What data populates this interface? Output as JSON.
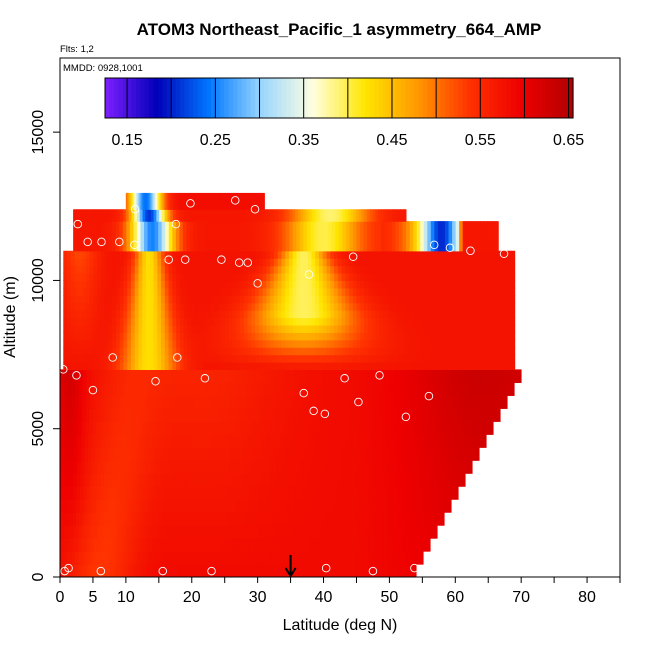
{
  "chart_data": {
    "type": "heatmap",
    "title": "ATOM3 Northeast_Pacific_1 asymmetry_664_AMP",
    "flights_note": "Flts: 1,2",
    "date_note": "MMDD: 0928,1001",
    "xlabel": "Latitude (deg N)",
    "ylabel": "Altitude (m)",
    "xlim": [
      0,
      85
    ],
    "ylim": [
      0,
      17500
    ],
    "x_ticks": [
      0,
      5,
      10,
      20,
      30,
      40,
      50,
      60,
      70,
      80
    ],
    "y_ticks": [
      0,
      5000,
      10000,
      15000
    ],
    "colorbar": {
      "min": 0.125,
      "max": 0.655,
      "ticks": [
        0.15,
        0.25,
        0.35,
        0.45,
        0.55,
        0.65
      ],
      "tick_labels": [
        "0.15",
        "0.25",
        "0.35",
        "0.45",
        "0.55",
        "0.65"
      ],
      "colors": [
        "#7f1fff",
        "#0000b8",
        "#0077ff",
        "#99d6ff",
        "#ffffe0",
        "#ffe600",
        "#ff9900",
        "#ff3300",
        "#ee0000",
        "#b20000"
      ]
    },
    "profiles_upper": [
      {
        "lat": 0.5,
        "alt": 7000
      },
      {
        "lat": 2.7,
        "alt": 11900
      },
      {
        "lat": 4.2,
        "alt": 11300
      },
      {
        "lat": 6.3,
        "alt": 11300
      },
      {
        "lat": 9.0,
        "alt": 11300
      },
      {
        "lat": 11.3,
        "alt": 11200
      },
      {
        "lat": 11.4,
        "alt": 12400
      },
      {
        "lat": 17.6,
        "alt": 11900
      },
      {
        "lat": 19.8,
        "alt": 12600
      },
      {
        "lat": 26.6,
        "alt": 12700
      },
      {
        "lat": 29.6,
        "alt": 12400
      },
      {
        "lat": 56.8,
        "alt": 11200
      },
      {
        "lat": 59.2,
        "alt": 11100
      },
      {
        "lat": 62.3,
        "alt": 11000
      },
      {
        "lat": 67.4,
        "alt": 10900
      }
    ],
    "profiles_lower": [
      {
        "lat": 0.7,
        "alt": 200
      },
      {
        "lat": 1.3,
        "alt": 300
      },
      {
        "lat": 2.5,
        "alt": 6800
      },
      {
        "lat": 5.0,
        "alt": 6300
      },
      {
        "lat": 6.2,
        "alt": 200
      },
      {
        "lat": 8.0,
        "alt": 7400
      },
      {
        "lat": 14.5,
        "alt": 6600
      },
      {
        "lat": 15.6,
        "alt": 200
      },
      {
        "lat": 16.5,
        "alt": 10700
      },
      {
        "lat": 17.8,
        "alt": 7400
      },
      {
        "lat": 19.0,
        "alt": 10700
      },
      {
        "lat": 22.0,
        "alt": 6700
      },
      {
        "lat": 23.0,
        "alt": 200
      },
      {
        "lat": 24.5,
        "alt": 10700
      },
      {
        "lat": 27.2,
        "alt": 10600
      },
      {
        "lat": 28.5,
        "alt": 10600
      },
      {
        "lat": 30.0,
        "alt": 9900
      },
      {
        "lat": 37.0,
        "alt": 6200
      },
      {
        "lat": 37.8,
        "alt": 10200
      },
      {
        "lat": 38.5,
        "alt": 5600
      },
      {
        "lat": 40.2,
        "alt": 5500
      },
      {
        "lat": 40.4,
        "alt": 300
      },
      {
        "lat": 43.2,
        "alt": 6700
      },
      {
        "lat": 44.5,
        "alt": 10800
      },
      {
        "lat": 45.3,
        "alt": 5900
      },
      {
        "lat": 47.5,
        "alt": 200
      },
      {
        "lat": 48.5,
        "alt": 6800
      },
      {
        "lat": 52.5,
        "alt": 5400
      },
      {
        "lat": 53.8,
        "alt": 300
      },
      {
        "lat": 56.0,
        "alt": 6100
      },
      {
        "lat": 70.8,
        "alt": 6200
      }
    ],
    "arrow_lat": 35
  }
}
